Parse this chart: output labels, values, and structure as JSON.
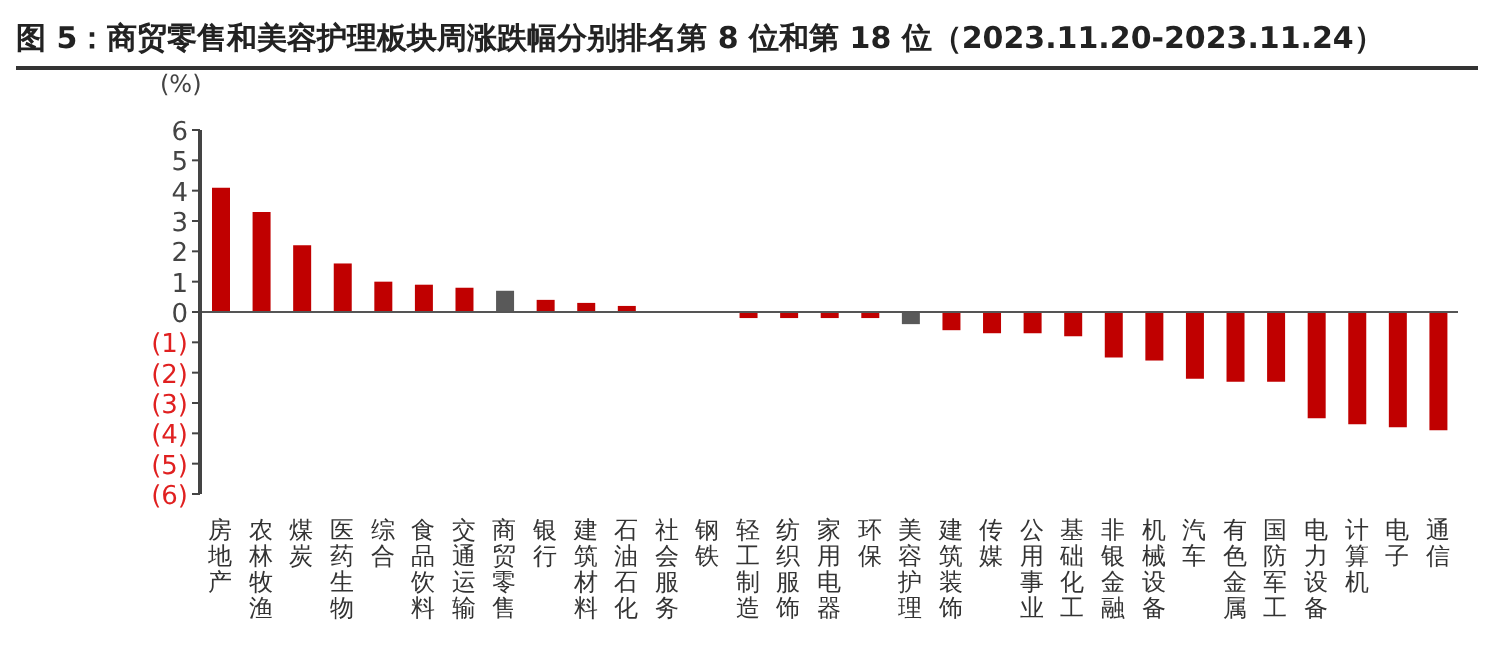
{
  "chart_data": {
    "type": "bar",
    "title": "图 5：商贸零售和美容护理板块周涨跌幅分别排名第 8 位和第 18 位（2023.11.20-2023.11.24）",
    "ylabel": "(%)",
    "categories": [
      "房地产",
      "农林牧渔",
      "煤炭",
      "医药生物",
      "综合",
      "食品饮料",
      "交通运输",
      "商贸零售",
      "银行",
      "建筑材料",
      "石油石化",
      "社会服务",
      "钢铁",
      "轻工制造",
      "纺织服饰",
      "家用电器",
      "环保",
      "美容护理",
      "建筑装饰",
      "传媒",
      "公用事业",
      "基础化工",
      "非银金融",
      "机械设备",
      "汽车",
      "有色金属",
      "国防军工",
      "电力设备",
      "计算机",
      "电子",
      "通信"
    ],
    "values": [
      4.1,
      3.3,
      2.2,
      1.6,
      1.0,
      0.9,
      0.8,
      0.7,
      0.4,
      0.3,
      0.2,
      0,
      0,
      -0.2,
      -0.2,
      -0.2,
      -0.2,
      -0.4,
      -0.6,
      -0.7,
      -0.7,
      -0.8,
      -1.5,
      -1.6,
      -2.2,
      -2.3,
      -2.3,
      -3.5,
      -3.7,
      -3.8,
      -3.9
    ],
    "colors": [
      "#c00000",
      "#c00000",
      "#c00000",
      "#c00000",
      "#c00000",
      "#c00000",
      "#c00000",
      "#595959",
      "#c00000",
      "#c00000",
      "#c00000",
      "#c00000",
      "#c00000",
      "#c00000",
      "#c00000",
      "#c00000",
      "#c00000",
      "#595959",
      "#c00000",
      "#c00000",
      "#c00000",
      "#c00000",
      "#c00000",
      "#c00000",
      "#c00000",
      "#c00000",
      "#c00000",
      "#c00000",
      "#c00000",
      "#c00000",
      "#c00000"
    ],
    "ylim": [
      -6,
      6
    ],
    "yticks": [
      {
        "value": -6,
        "label": "(6)"
      },
      {
        "value": -5,
        "label": "(5)"
      },
      {
        "value": -4,
        "label": "(4)"
      },
      {
        "value": -3,
        "label": "(3)"
      },
      {
        "value": -2,
        "label": "(2)"
      },
      {
        "value": -1,
        "label": "(1)"
      },
      0,
      1,
      2,
      3,
      4,
      5,
      6
    ]
  }
}
